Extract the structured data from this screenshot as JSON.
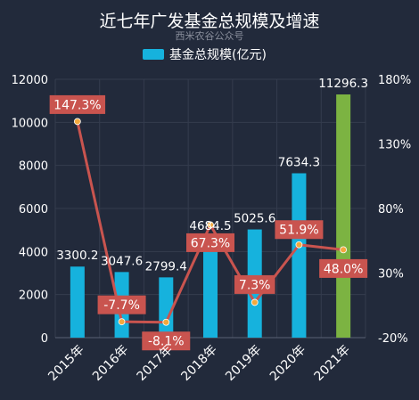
{
  "title": "近七年广发基金总规模及增速",
  "watermark": "西米农谷公众号",
  "legend_label": "基金总规模(亿元)",
  "colors": {
    "background": "#222a3b",
    "bar": "#16b2dd",
    "bar_highlight": "#7cb342",
    "line": "#c9544f",
    "marker": "#f3a93d",
    "label_box": "#c9544f",
    "grid": "#343c4e",
    "text": "#ffffff"
  },
  "chart_data": {
    "type": "bar",
    "categories": [
      "2015年",
      "2016年",
      "2017年",
      "2018年",
      "2019年",
      "2020年",
      "2021年"
    ],
    "series": [
      {
        "name": "基金总规模(亿元)",
        "type": "bar",
        "axis": "left",
        "values": [
          3300.2,
          3047.6,
          2799.4,
          4684.5,
          5025.6,
          7634.3,
          11296.3
        ],
        "labels": [
          "3300.2",
          "3047.6",
          "2799.4",
          "4684.5",
          "5025.6",
          "7634.3",
          "11296.3"
        ]
      },
      {
        "name": "",
        "type": "line",
        "axis": "right",
        "values": [
          147.3,
          -7.7,
          -8.1,
          67.3,
          7.3,
          51.9,
          48.0
        ],
        "labels": [
          "147.3%",
          "-7.7%",
          "-8.1%",
          "67.3%",
          "7.3%",
          "51.9%",
          "48.0%"
        ]
      }
    ],
    "highlight_index": 6,
    "y_left": {
      "min": 0,
      "max": 12000,
      "ticks": [
        "0",
        "2000",
        "4000",
        "6000",
        "8000",
        "10000",
        "12000"
      ]
    },
    "y_right": {
      "min": -20,
      "max": 180,
      "ticks": [
        "-20%",
        "30%",
        "80%",
        "130%",
        "180%"
      ]
    },
    "grid": true,
    "legend_position": "top-center"
  }
}
